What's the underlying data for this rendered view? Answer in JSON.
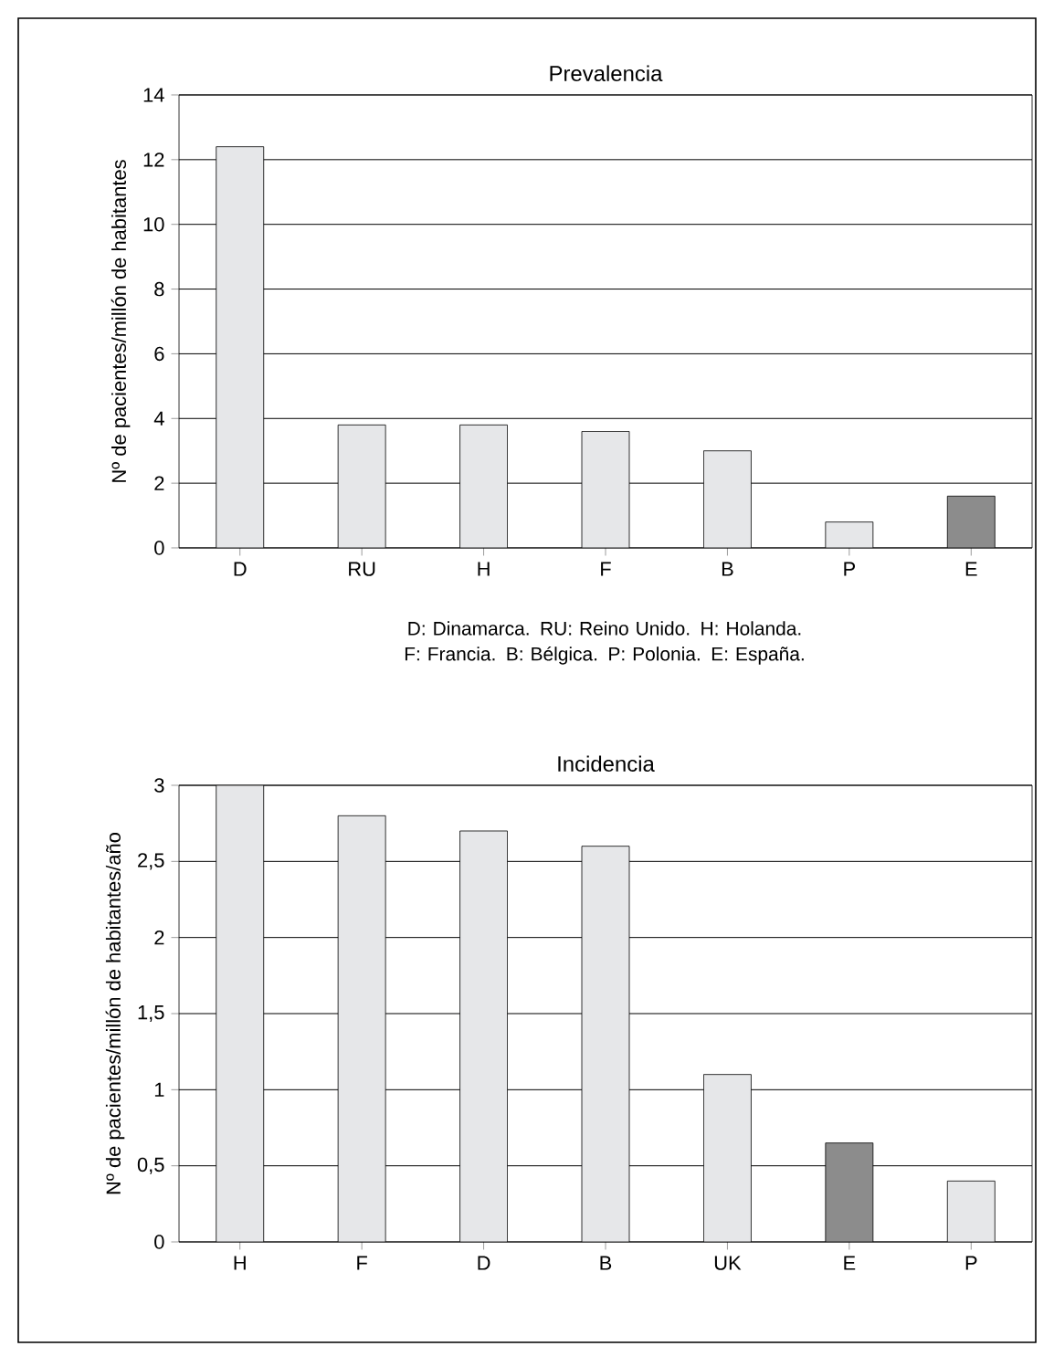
{
  "chart_data": [
    {
      "type": "bar",
      "title": "Prevalencia",
      "ylabel": "Nº de pacientes/millón de habitantes",
      "categories": [
        "D",
        "RU",
        "H",
        "F",
        "B",
        "P",
        "E"
      ],
      "values": [
        12.4,
        3.8,
        3.8,
        3.6,
        3.0,
        0.8,
        1.6
      ],
      "colors": [
        "#e6e7e9",
        "#e6e7e9",
        "#e6e7e9",
        "#e6e7e9",
        "#e6e7e9",
        "#e6e7e9",
        "#8c8c8c"
      ],
      "ylim": [
        0,
        14
      ],
      "yticks": [
        0,
        2,
        4,
        6,
        8,
        10,
        12,
        14
      ],
      "grid": "y",
      "annotations": [
        "D: Dinamarca. RU: Reino Unido. H: Holanda. F: Francia. B: Bélgica. P: Polonia. E: España."
      ]
    },
    {
      "type": "bar",
      "title": "Incidencia",
      "ylabel": "Nº de pacientes/millón de habitantes/año",
      "categories": [
        "H",
        "F",
        "D",
        "B",
        "UK",
        "E",
        "P"
      ],
      "values": [
        3.0,
        2.8,
        2.7,
        2.6,
        1.1,
        0.65,
        0.4
      ],
      "colors": [
        "#e6e7e9",
        "#e6e7e9",
        "#e6e7e9",
        "#e6e7e9",
        "#e6e7e9",
        "#8c8c8c",
        "#e6e7e9"
      ],
      "ylim": [
        0,
        3
      ],
      "yticks": [
        0,
        {
          "value": 0.5,
          "label": "0,5"
        },
        1,
        {
          "value": 1.5,
          "label": "1,5"
        },
        2,
        {
          "value": 2.5,
          "label": "2,5"
        },
        3
      ],
      "grid": "y"
    }
  ]
}
